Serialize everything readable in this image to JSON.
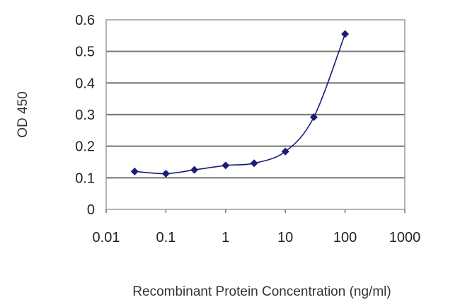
{
  "chart_data": {
    "type": "line",
    "title": "",
    "xlabel": "Recombinant Protein Concentration (ng/ml)",
    "ylabel": "OD 450",
    "x_scale": "log",
    "xlim": [
      0.01,
      1000
    ],
    "ylim": [
      0,
      0.6
    ],
    "x_ticks": [
      "0.01",
      "0.1",
      "1",
      "10",
      "100",
      "1000"
    ],
    "y_ticks": [
      "0",
      "0.1",
      "0.2",
      "0.3",
      "0.4",
      "0.5",
      "0.6"
    ],
    "grid": "horizontal",
    "legend": "none",
    "series": [
      {
        "x": [
          0.03,
          0.1,
          0.3,
          1,
          3,
          10,
          30,
          100
        ],
        "y": [
          0.12,
          0.113,
          0.125,
          0.139,
          0.146,
          0.183,
          0.292,
          0.555
        ],
        "color": "#1c1c78",
        "marker": "diamond",
        "smooth": true
      }
    ]
  }
}
